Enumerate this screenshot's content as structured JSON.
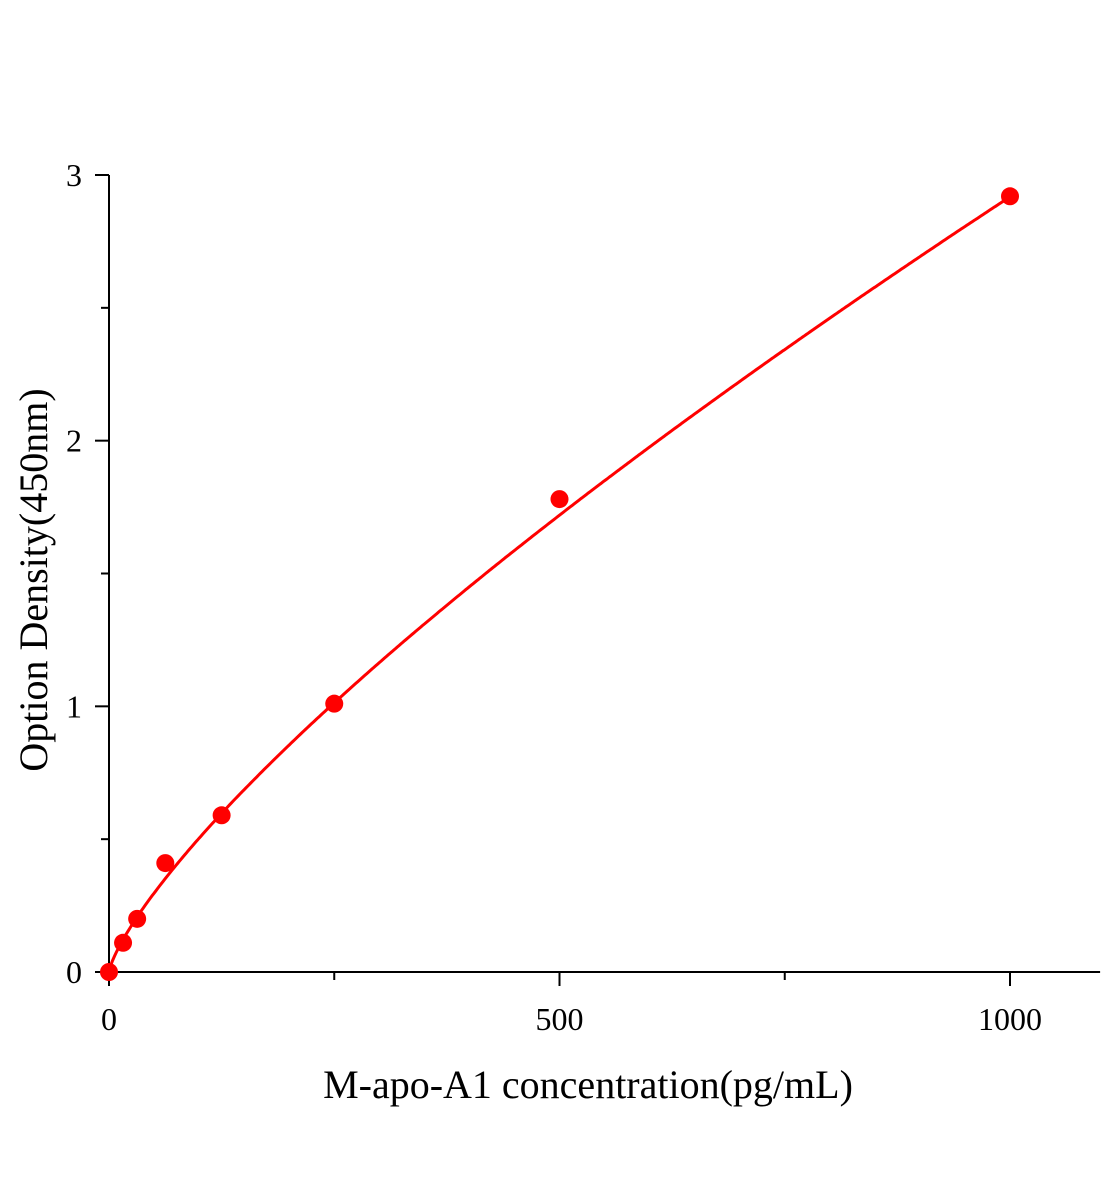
{
  "chart_data": {
    "type": "scatter",
    "title": "",
    "xlabel": "M-apo-A1 concentration(pg/mL)",
    "ylabel": "Option Density(450nm)",
    "xlim": [
      0,
      1100
    ],
    "ylim": [
      0,
      3
    ],
    "x_ticks": [
      0,
      500,
      1000
    ],
    "y_ticks": [
      0,
      1,
      2,
      3
    ],
    "grid": false,
    "legend": "none",
    "series": [
      {
        "x": [
          0,
          15.6,
          31.25,
          62.5,
          125,
          250,
          500,
          1000
        ],
        "y": [
          0,
          0.11,
          0.2,
          0.41,
          0.59,
          1.01,
          1.78,
          2.92
        ],
        "color": "#ff0000",
        "fit_line": true
      }
    ]
  }
}
